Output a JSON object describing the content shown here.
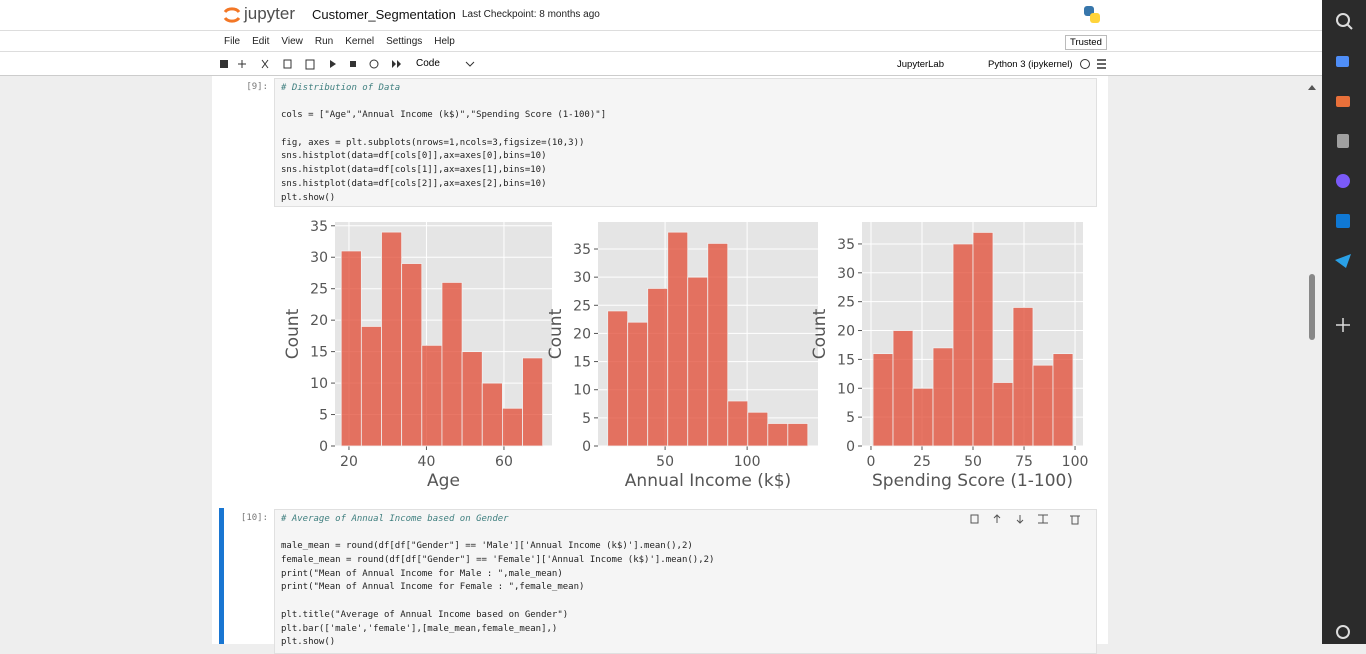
{
  "header": {
    "logo": "jupyter",
    "notebook": "Customer_Segmentation",
    "checkpoint": "Last Checkpoint: 8 months ago",
    "trusted": "Trusted"
  },
  "menu": [
    "File",
    "Edit",
    "View",
    "Run",
    "Kernel",
    "Settings",
    "Help"
  ],
  "toolbar": {
    "cell_type": "Code",
    "jupyterlab": "JupyterLab",
    "kernel": "Python 3 (ipykernel)"
  },
  "cells": [
    {
      "prompt": "[9]:",
      "blocks": [
        [
          "# Distribution of Data"
        ],
        [
          "cols = [\"Age\",\"Annual Income (k$)\",\"Spending Score (1-100)\"]"
        ],
        [
          "fig, axes = plt.subplots(nrows=1,ncols=3,figsize=(10,3))",
          "sns.histplot(data=df[cols[0]],ax=axes[0],bins=10)",
          "sns.histplot(data=df[cols[1]],ax=axes[1],bins=10)",
          "sns.histplot(data=df[cols[2]],ax=axes[2],bins=10)",
          "plt.show()"
        ]
      ]
    },
    {
      "prompt": "[10]:",
      "blocks": [
        [
          "# Average of Annual Income based on Gender"
        ],
        [
          "male_mean = round(df[df[\"Gender\"] == 'Male']['Annual Income (k$)'].mean(),2)",
          "female_mean = round(df[df[\"Gender\"] == 'Female']['Annual Income (k$)'].mean(),2)",
          "print(\"Mean of Annual Income for Male : \",male_mean)",
          "print(\"Mean of Annual Income for Female : \",female_mean)"
        ],
        [
          "plt.title(\"Average of Annual Income based on Gender\")",
          "plt.bar(['male','female'],[male_mean,female_mean],)",
          "plt.show()"
        ]
      ]
    }
  ],
  "chart_data": [
    {
      "type": "histogram",
      "x_label": "Age",
      "y_label": "Count",
      "color": "#e24a33",
      "grid": true,
      "bins": [
        18,
        23.2,
        28.4,
        33.6,
        38.8,
        44,
        49.2,
        54.4,
        59.6,
        64.8,
        70
      ],
      "counts": [
        31,
        19,
        34,
        29,
        16,
        26,
        15,
        10,
        6,
        14
      ],
      "xlim": [
        16.4,
        72.4
      ],
      "ylim": [
        0,
        35.6
      ],
      "xticks": [
        20,
        40,
        60
      ],
      "yticks": [
        0,
        5,
        10,
        15,
        20,
        25,
        30,
        35
      ]
    },
    {
      "type": "histogram",
      "x_label": "Annual Income (k$)",
      "y_label": "Count",
      "color": "#e24a33",
      "grid": true,
      "bins": [
        15,
        27.2,
        39.4,
        51.6,
        63.8,
        76,
        88.2,
        100.4,
        112.6,
        124.8,
        137
      ],
      "counts": [
        24,
        22,
        28,
        38,
        30,
        36,
        8,
        6,
        4,
        4
      ],
      "xlim": [
        9.1,
        143.2
      ],
      "ylim": [
        0,
        39.8
      ],
      "xticks": [
        50,
        100
      ],
      "yticks": [
        0,
        5,
        10,
        15,
        20,
        25,
        30,
        35
      ]
    },
    {
      "type": "histogram",
      "x_label": "Spending Score (1-100)",
      "y_label": "Count",
      "color": "#e24a33",
      "grid": true,
      "bins": [
        1,
        10.8,
        20.6,
        30.4,
        40.2,
        50,
        59.8,
        69.6,
        79.4,
        89.2,
        99
      ],
      "counts": [
        16,
        20,
        10,
        17,
        35,
        37,
        11,
        24,
        14,
        16
      ],
      "xlim": [
        -4.4,
        103.9
      ],
      "ylim": [
        0,
        38.8
      ],
      "xticks": [
        0,
        25,
        50,
        75,
        100
      ],
      "yticks": [
        0,
        5,
        10,
        15,
        20,
        25,
        30,
        35
      ]
    }
  ]
}
